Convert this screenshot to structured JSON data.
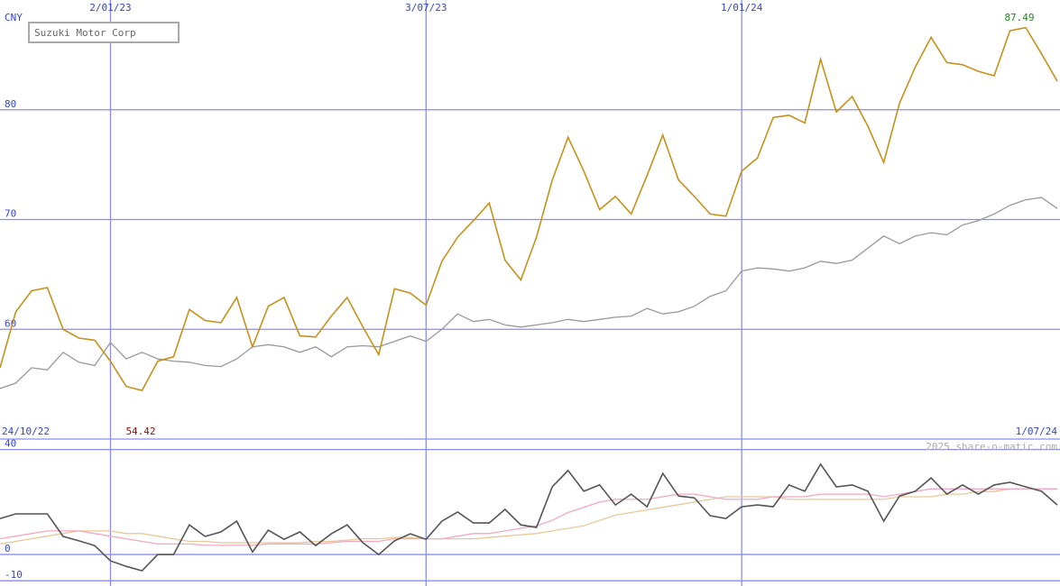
{
  "chart_data": [
    {
      "type": "line",
      "title": "Suzuki Motor Corp",
      "y_label": "CNY",
      "categories": [
        "24/10/22",
        null,
        null,
        null,
        null,
        null,
        null,
        "2/01/23",
        null,
        null,
        null,
        null,
        null,
        null,
        null,
        null,
        null,
        null,
        null,
        null,
        null,
        null,
        null,
        null,
        null,
        null,
        null,
        "3/07/23",
        null,
        null,
        null,
        null,
        null,
        null,
        null,
        null,
        null,
        null,
        null,
        null,
        null,
        null,
        null,
        null,
        null,
        null,
        null,
        "1/01/24",
        null,
        null,
        null,
        null,
        null,
        null,
        null,
        null,
        null,
        null,
        null,
        null,
        null,
        null,
        null,
        null,
        null,
        null,
        null,
        "1/07/24"
      ],
      "series": [
        {
          "color": "#999999",
          "values": [
            54.6,
            55.1,
            56.5,
            56.3,
            57.9,
            57,
            56.7,
            58.8,
            57.3,
            57.9,
            57.3,
            57.1,
            57,
            56.7,
            56.6,
            57.3,
            58.4,
            58.6,
            58.4,
            57.9,
            58.4,
            57.5,
            58.4,
            58.5,
            58.4,
            58.9,
            59.4,
            58.9,
            60,
            61.4,
            60.7,
            60.9,
            60.4,
            60.2,
            60.4,
            60.6,
            60.9,
            60.7,
            60.9,
            61.1,
            61.2,
            61.9,
            61.4,
            61.6,
            62.1,
            63,
            63.5,
            65.3,
            65.6,
            65.5,
            65.3,
            65.6,
            66.2,
            66,
            66.3,
            67.4,
            68.5,
            67.8,
            68.5,
            68.8,
            68.6,
            69.5,
            69.9,
            70.5,
            71.3,
            71.8,
            72,
            71
          ]
        },
        {
          "color": "#c8901a",
          "values": [
            56.5,
            61.6,
            63.5,
            63.8,
            60,
            59.2,
            59,
            57.1,
            54.8,
            54.42,
            57.1,
            57.5,
            61.8,
            60.8,
            60.6,
            62.9,
            58.4,
            62.1,
            62.9,
            59.4,
            59.3,
            61.2,
            62.9,
            60.2,
            57.7,
            63.7,
            63.3,
            62.2,
            66.2,
            68.4,
            69.9,
            71.5,
            66.3,
            64.5,
            68.4,
            73.6,
            77.5,
            74.4,
            70.9,
            72.1,
            70.5,
            74,
            77.7,
            73.6,
            72.1,
            70.5,
            70.3,
            74.4,
            75.6,
            79.3,
            79.5,
            78.8,
            84.6,
            79.8,
            81.2,
            78.5,
            75.2,
            80.6,
            83.9,
            86.6,
            84.3,
            84.1,
            83.5,
            83.1,
            87.2,
            87.49,
            85.1,
            82.6
          ]
        }
      ],
      "annotations": [
        "87.49",
        "54.42"
      ],
      "ylim": [
        50,
        90
      ],
      "yticks": [
        60,
        70,
        80
      ],
      "grid": true
    },
    {
      "type": "line",
      "source": "2025 share-o-matic.com",
      "series": [
        {
          "color": "#e8c898",
          "values": [
            4,
            5,
            6,
            7,
            8,
            9,
            9,
            9,
            8,
            8,
            7,
            6,
            5,
            5,
            4.5,
            4.5,
            4.5,
            4.5,
            4.5,
            4.5,
            5,
            5,
            5.5,
            6,
            6,
            6.5,
            6.5,
            6,
            6,
            6,
            6,
            6.5,
            7,
            7.5,
            8,
            9,
            10,
            11,
            13,
            15,
            16,
            17,
            18,
            19,
            20,
            21,
            22,
            22,
            22,
            22,
            21,
            21,
            21,
            21,
            21,
            21,
            21,
            22,
            22,
            22,
            23,
            23,
            24,
            24,
            25,
            25,
            25,
            25
          ]
        },
        {
          "color": "#f2a8c0",
          "values": [
            6,
            7,
            8,
            9,
            9,
            9,
            8,
            7,
            6,
            5,
            4,
            4,
            4,
            3.5,
            3.5,
            3.5,
            3.5,
            4,
            4,
            4,
            4,
            4.5,
            5,
            5,
            5,
            6,
            6,
            6,
            6,
            7,
            8,
            8,
            9,
            10,
            11,
            13,
            16,
            18,
            20,
            21,
            21,
            21,
            22,
            23,
            23,
            22,
            21,
            21,
            21,
            22,
            22,
            22,
            23,
            23,
            23,
            23,
            22,
            23,
            24,
            25,
            25,
            25,
            25,
            25,
            25,
            25,
            25,
            25
          ]
        },
        {
          "color": "#555555",
          "values": [
            13.7,
            15.5,
            15.5,
            15.5,
            6.9,
            5.2,
            3.4,
            -2.4,
            -4.5,
            -6.2,
            0,
            0,
            11.3,
            6.9,
            8.6,
            12.7,
            1,
            9.3,
            5.8,
            8.6,
            3.4,
            7.9,
            11.3,
            4.5,
            0,
            5.2,
            7.9,
            5.8,
            12.7,
            16.2,
            12,
            12,
            17.2,
            11.3,
            10.3,
            25.8,
            32,
            24.1,
            26.5,
            18.9,
            23,
            18.2,
            30.9,
            22.3,
            21.6,
            14.8,
            13.7,
            18.2,
            18.9,
            18.2,
            26.5,
            24.1,
            34.4,
            25.8,
            26.5,
            24.1,
            12.7,
            22.3,
            24.1,
            29.2,
            23,
            26.5,
            23,
            26.5,
            27.5,
            25.8,
            24.1,
            18.9
          ]
        }
      ],
      "ylim": [
        -12,
        44
      ],
      "yticks": [
        -10,
        0,
        40
      ],
      "grid": true
    }
  ]
}
